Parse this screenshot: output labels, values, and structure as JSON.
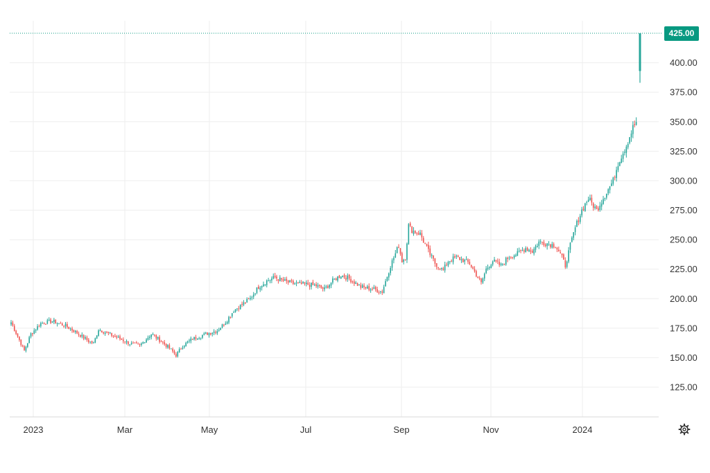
{
  "chart_data": {
    "type": "candlestick",
    "title": "",
    "xlabel": "",
    "ylabel": "",
    "ylim": [
      100,
      430
    ],
    "y_ticks": [
      425,
      400,
      375,
      350,
      325,
      300,
      275,
      250,
      225,
      200,
      175,
      150,
      125
    ],
    "y_tick_labels": [
      "425.00",
      "400.00",
      "375.00",
      "350.00",
      "325.00",
      "300.00",
      "275.00",
      "250.00",
      "225.00",
      "200.00",
      "175.00",
      "150.00",
      "125.00"
    ],
    "x_tick_labels": [
      "2023",
      "Mar",
      "May",
      "Jul",
      "Sep",
      "Nov",
      "2024"
    ],
    "grid": true,
    "last_price": 425,
    "last_price_label": "425.00",
    "colors": {
      "up": "#26a69a",
      "down": "#ef5350",
      "price_tag": "#089981",
      "grid": "#eeeeee",
      "text": "#333333"
    },
    "close_path": [
      [
        0,
        180
      ],
      [
        5,
        165
      ],
      [
        8,
        156
      ],
      [
        12,
        170
      ],
      [
        18,
        179
      ],
      [
        25,
        181
      ],
      [
        33,
        177
      ],
      [
        40,
        171
      ],
      [
        47,
        164
      ],
      [
        50,
        162
      ],
      [
        53,
        174
      ],
      [
        58,
        171
      ],
      [
        66,
        166
      ],
      [
        72,
        162
      ],
      [
        78,
        160
      ],
      [
        82,
        166
      ],
      [
        85,
        170
      ],
      [
        90,
        165
      ],
      [
        96,
        158
      ],
      [
        100,
        152
      ],
      [
        104,
        160
      ],
      [
        110,
        166
      ],
      [
        118,
        170
      ],
      [
        125,
        173
      ],
      [
        130,
        180
      ],
      [
        135,
        190
      ],
      [
        140,
        195
      ],
      [
        145,
        200
      ],
      [
        150,
        210
      ],
      [
        155,
        215
      ],
      [
        160,
        218
      ],
      [
        165,
        215
      ],
      [
        170,
        213
      ],
      [
        180,
        212
      ],
      [
        185,
        211
      ],
      [
        190,
        208
      ],
      [
        195,
        215
      ],
      [
        200,
        220
      ],
      [
        205,
        217
      ],
      [
        212,
        210
      ],
      [
        220,
        208
      ],
      [
        225,
        206
      ],
      [
        230,
        228
      ],
      [
        235,
        245
      ],
      [
        237,
        232
      ],
      [
        239,
        235
      ],
      [
        241,
        262
      ],
      [
        243,
        258
      ],
      [
        248,
        255
      ],
      [
        253,
        240
      ],
      [
        257,
        230
      ],
      [
        262,
        224
      ],
      [
        265,
        232
      ],
      [
        270,
        235
      ],
      [
        278,
        230
      ],
      [
        283,
        218
      ],
      [
        285,
        213
      ],
      [
        288,
        225
      ],
      [
        292,
        232
      ],
      [
        297,
        228
      ],
      [
        302,
        236
      ],
      [
        307,
        238
      ],
      [
        312,
        243
      ],
      [
        316,
        240
      ],
      [
        320,
        248
      ],
      [
        325,
        247
      ],
      [
        330,
        245
      ],
      [
        333,
        238
      ],
      [
        336,
        228
      ],
      [
        339,
        245
      ],
      [
        342,
        260
      ],
      [
        346,
        275
      ],
      [
        350,
        285
      ],
      [
        355,
        275
      ],
      [
        360,
        288
      ],
      [
        363,
        295
      ],
      [
        365,
        300
      ],
      [
        368,
        315
      ],
      [
        373,
        330
      ],
      [
        377,
        345
      ],
      [
        380,
        352
      ]
    ],
    "last_bar": {
      "open": 393,
      "high": 425,
      "low": 383,
      "close": 425
    }
  },
  "ui": {
    "settings_icon": "gear-icon"
  }
}
